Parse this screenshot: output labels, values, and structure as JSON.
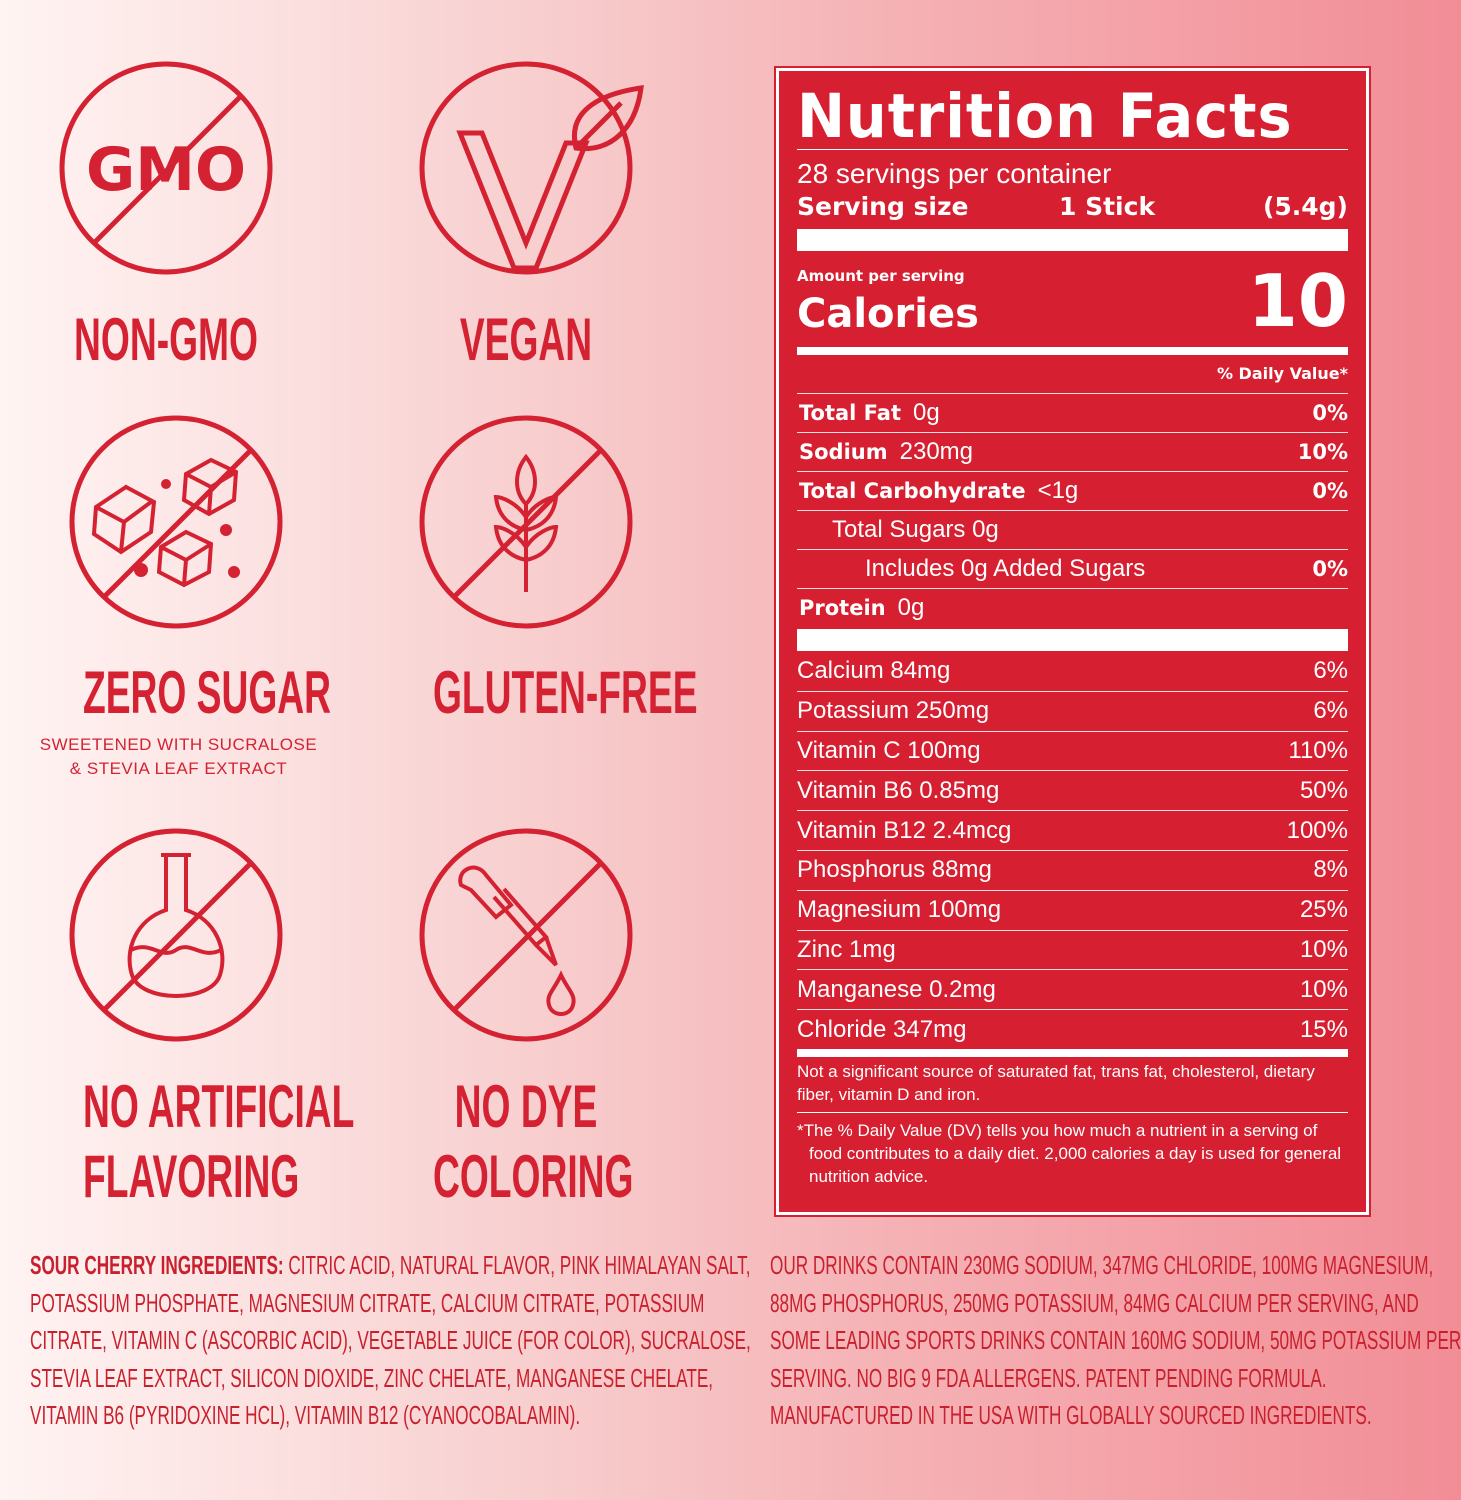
{
  "badges": [
    {
      "label": "NON-GMO",
      "icon": "no-gmo-icon",
      "icon_text": "GMO"
    },
    {
      "label": "VEGAN",
      "icon": "vegan-v-leaf-icon"
    },
    {
      "label": "ZERO SUGAR",
      "icon": "no-sugar-cubes-icon",
      "note_lines": [
        "SWEETENED WITH SUCRALOSE",
        "&  STEVIA LEAF EXTRACT"
      ]
    },
    {
      "label": "GLUTEN-FREE",
      "icon": "no-wheat-icon"
    },
    {
      "label_lines": [
        "NO ARTIFICIAL",
        "FLAVORING"
      ],
      "icon": "no-flask-icon"
    },
    {
      "label_lines": [
        "NO DYE",
        "COLORING"
      ],
      "icon": "no-dropper-icon"
    }
  ],
  "nutrition": {
    "title": "Nutrition Facts",
    "servings": "28 servings per container",
    "serving_size_label": "Serving size",
    "serving_size": "1 Stick",
    "serving_weight": "(5.4g)",
    "amount_per_serving": "Amount per serving",
    "calories_label": "Calories",
    "calories": "10",
    "dv_header": "% Daily Value*",
    "macros": [
      {
        "name": "Total Fat",
        "amount": "0g",
        "dv": "0%",
        "bold": true,
        "indent": 0
      },
      {
        "name": "Sodium",
        "amount": "230mg",
        "dv": "10%",
        "bold": true,
        "indent": 0
      },
      {
        "name": "Total Carbohydrate",
        "amount": "<1g",
        "dv": "0%",
        "bold": true,
        "indent": 0
      },
      {
        "name": "Total Sugars 0g",
        "amount": "",
        "dv": "",
        "bold": false,
        "indent": 1
      },
      {
        "name": "Includes 0g Added Sugars",
        "amount": "",
        "dv": "0%",
        "bold": false,
        "indent": 2
      },
      {
        "name": "Protein",
        "amount": "0g",
        "dv": "",
        "bold": true,
        "indent": 0
      }
    ],
    "micros": [
      {
        "name": "Calcium 84mg",
        "dv": "6%"
      },
      {
        "name": "Potassium 250mg",
        "dv": "6%"
      },
      {
        "name": "Vitamin C 100mg",
        "dv": "110%"
      },
      {
        "name": "Vitamin B6 0.85mg",
        "dv": "50%"
      },
      {
        "name": "Vitamin B12 2.4mcg",
        "dv": "100%"
      },
      {
        "name": "Phosphorus 88mg",
        "dv": "8%"
      },
      {
        "name": "Magnesium 100mg",
        "dv": "25%"
      },
      {
        "name": "Zinc 1mg",
        "dv": "10%"
      },
      {
        "name": "Manganese 0.2mg",
        "dv": "10%"
      },
      {
        "name": "Chloride 347mg",
        "dv": "15%"
      }
    ],
    "not_significant": "Not a significant source of saturated fat, trans fat, cholesterol, dietary fiber, vitamin D and iron.",
    "footnote": "*The % Daily Value (DV) tells you how much a nutrient in a serving of food contributes to a daily diet. 2,000 calories a day is used for general nutrition advice."
  },
  "ingredients": {
    "heading": "SOUR CHERRY INGREDIENTS:",
    "lines": [
      " CITRIC ACID, NATURAL FLAVOR, PINK HIMALAYAN SALT,",
      "POTASSIUM  PHOSPHATE,  MAGNESIUM  CITRATE,  CALCIUM  CITRATE,  POTASSIUM",
      "CITRATE, VITAMIN C (ASCORBIC ACID), VEGETABLE JUICE (FOR COLOR), SUCRALOSE,",
      "STEVIA  LEAF  EXTRACT,  SILICON  DIOXIDE,  ZINC  CHELATE,  MANGANESE  CHELATE,",
      "VITAMIN B6 (PYRIDOXINE HCL), VITAMIN B12 (CYANOCOBALAMIN)."
    ]
  },
  "claims": {
    "lines": [
      "OUR DRINKS CONTAIN 230MG SODIUM, 347MG CHLORIDE,  100MG MAGNESIUM,",
      "88MG PHOSPHORUS, 250MG POTASSIUM, 84MG CALCIUM PER SERVING, AND",
      "SOME LEADING SPORTS DRINKS CONTAIN 160MG SODIUM, 50MG POTASSIUM PER",
      "SERVING. NO BIG 9 FDA ALLERGENS. PATENT PENDING FORMULA.",
      "MANUFACTURED IN THE USA WITH GLOBALLY SOURCED INGREDIENTS."
    ]
  },
  "colors": {
    "brand_red": "#d61f30",
    "background_left": "#fff4f3",
    "background_right": "#f28d96"
  }
}
